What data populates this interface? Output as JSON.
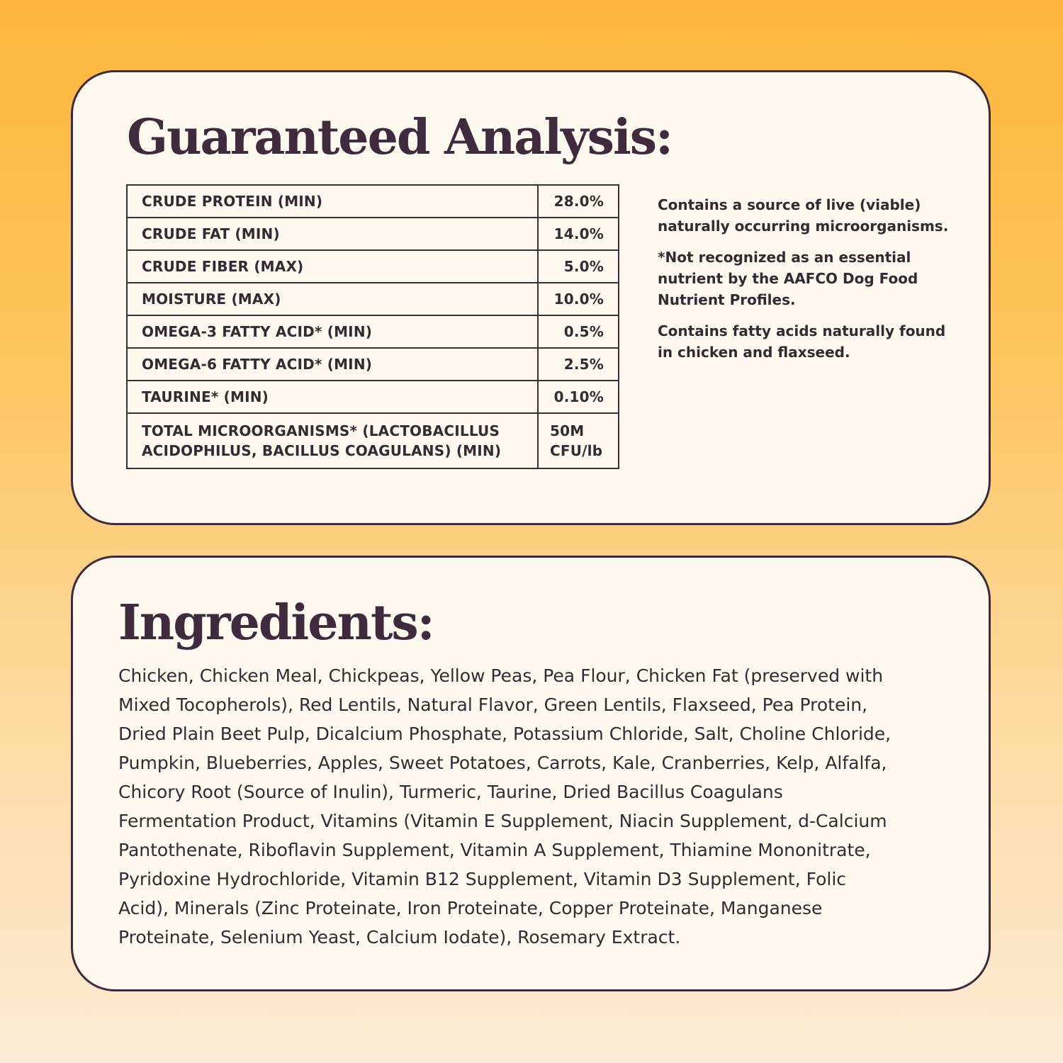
{
  "analysis": {
    "title": "Guaranteed Analysis:",
    "rows": [
      {
        "label": "CRUDE PROTEIN (MIN)",
        "value": "28.0%"
      },
      {
        "label": "CRUDE FAT (MIN)",
        "value": "14.0%"
      },
      {
        "label": "CRUDE FIBER (MAX)",
        "value": "5.0%"
      },
      {
        "label": "MOISTURE (MAX)",
        "value": "10.0%"
      },
      {
        "label": "OMEGA-3 FATTY ACID* (MIN)",
        "value": "0.5%"
      },
      {
        "label": "OMEGA-6 FATTY ACID* (MIN)",
        "value": "2.5%"
      },
      {
        "label": "TAURINE* (MIN)",
        "value": "0.10%"
      },
      {
        "label": "TOTAL MICROORGANISMS* (LACTOBACILLUS ACIDOPHILUS, BACILLUS COAGULANS) (MIN)",
        "value": "50M CFU/lb"
      }
    ],
    "notes": [
      "Contains a source of live (viable) naturally occurring microorganisms.",
      "*Not recognized as an essential nutrient by the AAFCO Dog Food Nutrient Profiles.",
      "Contains fatty acids naturally found in chicken and flaxseed."
    ]
  },
  "ingredients": {
    "title": "Ingredients:",
    "lines": [
      "Chicken, Chicken Meal, Chickpeas, Yellow Peas, Pea Flour, Chicken Fat (preserved with",
      "Mixed Tocopherols), Red Lentils, Natural Flavor, Green Lentils, Flaxseed, Pea Protein,",
      "Dried Plain Beet Pulp, Dicalcium Phosphate, Potassium Chloride, Salt, Choline Chloride,",
      "Pumpkin, Blueberries, Apples, Sweet Potatoes, Carrots, Kale, Cranberries, Kelp, Alfalfa,",
      "Chicory Root (Source of Inulin), Turmeric, Taurine, Dried Bacillus Coagulans",
      "Fermentation Product, Vitamins (Vitamin E Supplement, Niacin Supplement, d-Calcium",
      "Pantothenate, Riboflavin Supplement, Vitamin A Supplement, Thiamine Mononitrate,",
      "Pyridoxine Hydrochloride, Vitamin B12 Supplement, Vitamin D3 Supplement, Folic",
      "Acid), Minerals (Zinc Proteinate, Iron Proteinate, Copper Proteinate, Manganese",
      "Proteinate, Selenium Yeast, Calcium Iodate), Rosemary Extract."
    ]
  },
  "colors": {
    "text": "#3F2A3E",
    "card": "#FEF9EE",
    "background_top": "#FDB63A",
    "background_bottom": "#FDEBD6"
  }
}
